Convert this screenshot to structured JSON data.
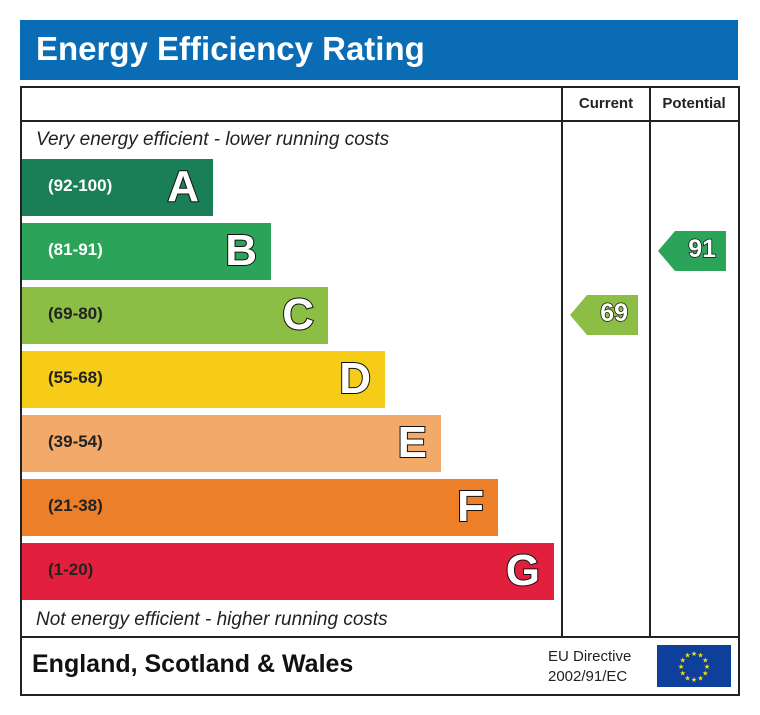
{
  "title": "Energy Efficiency Rating",
  "columns": {
    "current": "Current",
    "potential": "Potential"
  },
  "top_caption": "Very energy efficient - lower running costs",
  "bottom_caption": "Not energy efficient - higher running costs",
  "footer": {
    "region": "England, Scotland & Wales",
    "directive_line1": "EU Directive",
    "directive_line2": "2002/91/EC",
    "flag_icon": "eu-flag-icon"
  },
  "chart_data": {
    "type": "bar",
    "title": "Energy Efficiency Rating",
    "bands": [
      {
        "letter": "A",
        "range": "(92-100)",
        "color": "#1a7f56",
        "text_color": "#ffffff"
      },
      {
        "letter": "B",
        "range": "(81-91)",
        "color": "#2ba45a",
        "text_color": "#ffffff"
      },
      {
        "letter": "C",
        "range": "(69-80)",
        "color": "#8cbd45",
        "text_color": "#222222"
      },
      {
        "letter": "D",
        "range": "(55-68)",
        "color": "#f6cc18",
        "text_color": "#222222"
      },
      {
        "letter": "E",
        "range": "(39-54)",
        "color": "#f2a96a",
        "text_color": "#222222"
      },
      {
        "letter": "F",
        "range": "(21-38)",
        "color": "#ec7f27",
        "text_color": "#222222"
      },
      {
        "letter": "G",
        "range": "(1-20)",
        "color": "#e21f3c",
        "text_color": "#222222"
      }
    ],
    "current": {
      "value": "69",
      "band": "C",
      "color": "#8cbd45"
    },
    "potential": {
      "value": "91",
      "band": "B",
      "color": "#2ba45a"
    }
  }
}
